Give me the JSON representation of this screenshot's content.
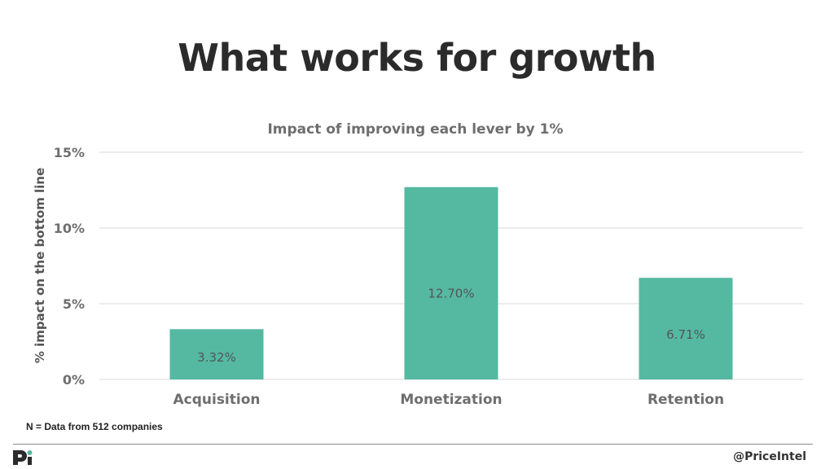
{
  "slide": {
    "title": "What works for growth",
    "footnote": "N = Data from 512 companies",
    "handle": "@PriceIntel",
    "logo_icon": "price-intelligently-logo"
  },
  "colors": {
    "bar": "#55b9a2",
    "grid": "#e6e6e6",
    "text": "#6e6e6e",
    "label": "#555555"
  },
  "chart_data": {
    "type": "bar",
    "title": "Impact of improving each lever by 1%",
    "xlabel": "",
    "ylabel": "% impact on the bottom line",
    "categories": [
      "Acquisition",
      "Monetization",
      "Retention"
    ],
    "values": [
      3.32,
      12.7,
      6.71
    ],
    "data_labels": [
      "3.32%",
      "12.70%",
      "6.71%"
    ],
    "ylim": [
      0,
      15
    ],
    "yticks": [
      0,
      5,
      10,
      15
    ],
    "ytick_labels": [
      "0%",
      "5%",
      "10%",
      "15%"
    ],
    "grid": true,
    "legend": "none"
  }
}
